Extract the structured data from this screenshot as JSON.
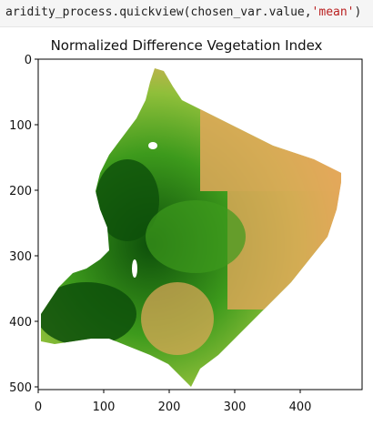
{
  "cell": {
    "code_prefix": "aridity_process.quickview(chosen_var.value,",
    "code_string": "'mean'",
    "code_suffix": ")"
  },
  "plot": {
    "title": "Normalized Difference Vegetation Index",
    "x_ticks": [
      "0",
      "100",
      "200",
      "300",
      "400"
    ],
    "y_ticks": [
      "0",
      "100",
      "200",
      "300",
      "400",
      "500"
    ]
  },
  "colors": {
    "arid": "#e3a85a",
    "mid": "#8fbf3a",
    "green": "#3d9a1c",
    "dark_green": "#0d4f0a"
  }
}
